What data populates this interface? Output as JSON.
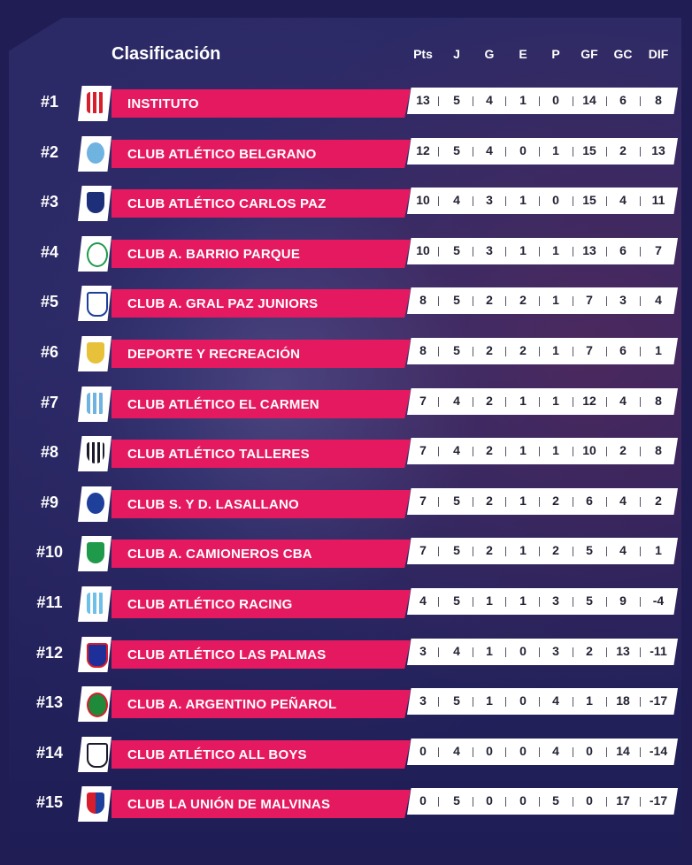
{
  "title": "Clasificación",
  "columns": [
    "Pts",
    "J",
    "G",
    "E",
    "P",
    "GF",
    "GC",
    "DIF"
  ],
  "colors": {
    "team_bar": "#e5195f",
    "background": "#201d55",
    "stats_bg": "#ffffff"
  },
  "rows": [
    {
      "rank": "#1",
      "team": "INSTITUTO",
      "crest": "instituto-crest-icon",
      "stats": [
        "13",
        "5",
        "4",
        "1",
        "0",
        "14",
        "6",
        "8"
      ]
    },
    {
      "rank": "#2",
      "team": "CLUB ATLÉTICO BELGRANO",
      "crest": "belgrano-crest-icon",
      "stats": [
        "12",
        "5",
        "4",
        "0",
        "1",
        "15",
        "2",
        "13"
      ]
    },
    {
      "rank": "#3",
      "team": "CLUB ATLÉTICO CARLOS PAZ",
      "crest": "carlos-paz-crest-icon",
      "stats": [
        "10",
        "4",
        "3",
        "1",
        "0",
        "15",
        "4",
        "11"
      ]
    },
    {
      "rank": "#4",
      "team": "CLUB A. BARRIO PARQUE",
      "crest": "barrio-parque-crest-icon",
      "stats": [
        "10",
        "5",
        "3",
        "1",
        "1",
        "13",
        "6",
        "7"
      ]
    },
    {
      "rank": "#5",
      "team": "CLUB A. GRAL PAZ JUNIORS",
      "crest": "gral-paz-crest-icon",
      "stats": [
        "8",
        "5",
        "2",
        "2",
        "1",
        "7",
        "3",
        "4"
      ]
    },
    {
      "rank": "#6",
      "team": "DEPORTE Y RECREACIÓN",
      "crest": "deporte-crest-icon",
      "stats": [
        "8",
        "5",
        "2",
        "2",
        "1",
        "7",
        "6",
        "1"
      ]
    },
    {
      "rank": "#7",
      "team": "CLUB ATLÉTICO EL CARMEN",
      "crest": "el-carmen-crest-icon",
      "stats": [
        "7",
        "4",
        "2",
        "1",
        "1",
        "12",
        "4",
        "8"
      ]
    },
    {
      "rank": "#8",
      "team": "CLUB ATLÉTICO TALLERES",
      "crest": "talleres-crest-icon",
      "stats": [
        "7",
        "4",
        "2",
        "1",
        "1",
        "10",
        "2",
        "8"
      ]
    },
    {
      "rank": "#9",
      "team": "CLUB S. Y D. LASALLANO",
      "crest": "lasallano-crest-icon",
      "stats": [
        "7",
        "5",
        "2",
        "1",
        "2",
        "6",
        "4",
        "2"
      ]
    },
    {
      "rank": "#10",
      "team": "CLUB A. CAMIONEROS CBA",
      "crest": "camioneros-crest-icon",
      "stats": [
        "7",
        "5",
        "2",
        "1",
        "2",
        "5",
        "4",
        "1"
      ]
    },
    {
      "rank": "#11",
      "team": "CLUB ATLÉTICO RACING",
      "crest": "racing-crest-icon",
      "stats": [
        "4",
        "5",
        "1",
        "1",
        "3",
        "5",
        "9",
        "-4"
      ]
    },
    {
      "rank": "#12",
      "team": "CLUB ATLÉTICO LAS PALMAS",
      "crest": "las-palmas-crest-icon",
      "stats": [
        "3",
        "4",
        "1",
        "0",
        "3",
        "2",
        "13",
        "-11"
      ]
    },
    {
      "rank": "#13",
      "team": "CLUB A. ARGENTINO PEÑAROL",
      "crest": "penarol-crest-icon",
      "stats": [
        "3",
        "5",
        "1",
        "0",
        "4",
        "1",
        "18",
        "-17"
      ]
    },
    {
      "rank": "#14",
      "team": "CLUB ATLÉTICO ALL BOYS",
      "crest": "all-boys-crest-icon",
      "stats": [
        "0",
        "4",
        "0",
        "0",
        "4",
        "0",
        "14",
        "-14"
      ]
    },
    {
      "rank": "#15",
      "team": "CLUB LA UNIÓN DE MALVINAS",
      "crest": "malvinas-crest-icon",
      "stats": [
        "0",
        "5",
        "0",
        "0",
        "5",
        "0",
        "17",
        "-17"
      ]
    }
  ]
}
